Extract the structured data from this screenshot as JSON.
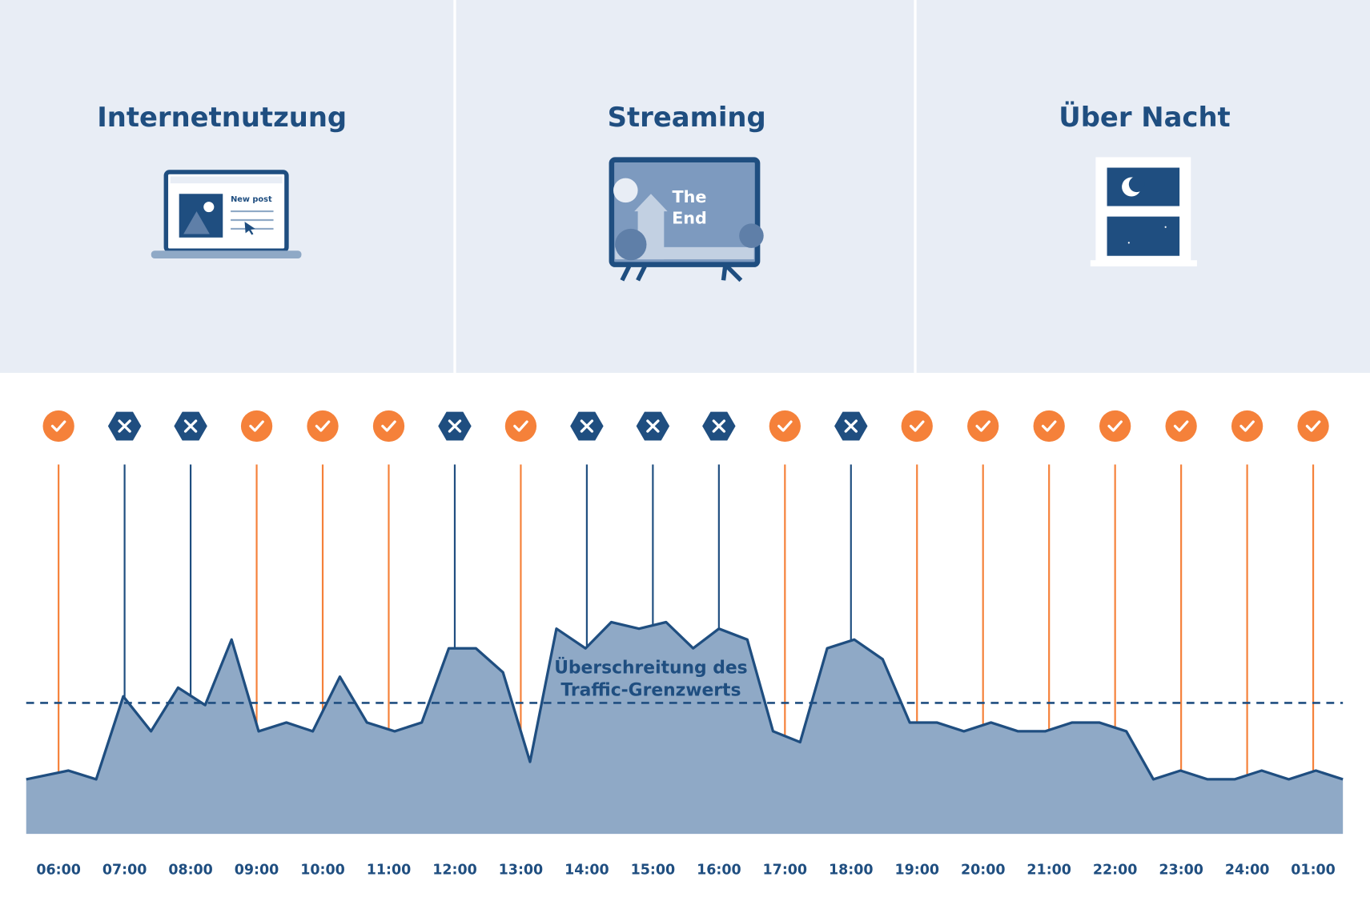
{
  "panels": [
    {
      "title": "Internetnutzung",
      "icon_text": [
        "New post"
      ]
    },
    {
      "title": "Streaming",
      "icon_text": [
        "The",
        "End"
      ]
    },
    {
      "title": "Über Nacht",
      "icon_text": []
    }
  ],
  "chart_data": {
    "type": "area",
    "categories": [
      "06:00",
      "07:00",
      "08:00",
      "09:00",
      "10:00",
      "11:00",
      "12:00",
      "13:00",
      "14:00",
      "15:00",
      "16:00",
      "17:00",
      "18:00",
      "19:00",
      "20:00",
      "21:00",
      "22:00",
      "23:00",
      "24:00",
      "01:00"
    ],
    "status": [
      "ok",
      "exceeded",
      "exceeded",
      "ok",
      "ok",
      "ok",
      "exceeded",
      "ok",
      "exceeded",
      "exceeded",
      "exceeded",
      "ok",
      "exceeded",
      "ok",
      "ok",
      "ok",
      "ok",
      "ok",
      "ok",
      "ok"
    ],
    "status_colors": {
      "ok": "#f5813a",
      "exceeded": "#1f4e80"
    },
    "series": [
      {
        "color": "#8fa9c6",
        "line_color": "#1f4e80",
        "x": [
          -0.49,
          0.15,
          0.57,
          0.98,
          1.4,
          1.81,
          2.22,
          2.62,
          3.03,
          3.45,
          3.85,
          4.26,
          4.67,
          5.09,
          5.5,
          5.91,
          6.32,
          6.73,
          7.14,
          7.54,
          7.98,
          8.37,
          8.79,
          9.2,
          9.61,
          10.0,
          10.43,
          10.82,
          11.23,
          11.64,
          12.05,
          12.48,
          12.89,
          13.3,
          13.71,
          14.12,
          14.53,
          14.94,
          15.35,
          15.76,
          16.17,
          16.58,
          16.99,
          17.4,
          17.81,
          18.22,
          18.63,
          19.04,
          19.45
        ],
        "values": [
          25,
          29,
          25,
          63,
          47,
          67,
          59,
          89,
          47,
          51,
          47,
          72,
          51,
          47,
          51,
          85,
          85,
          74,
          33,
          94,
          85,
          97,
          94,
          97,
          85,
          94,
          89,
          47,
          42,
          85,
          89,
          80,
          51,
          51,
          47,
          51,
          47,
          47,
          51,
          51,
          47,
          25,
          29,
          25,
          25,
          29,
          25,
          29,
          25
        ]
      }
    ],
    "xlim": [
      -0.49,
      19.45
    ],
    "ylim": [
      0,
      100
    ],
    "threshold": 60,
    "annotation": [
      "Überschreitung des",
      "Traffic-Grenzwerts"
    ]
  }
}
